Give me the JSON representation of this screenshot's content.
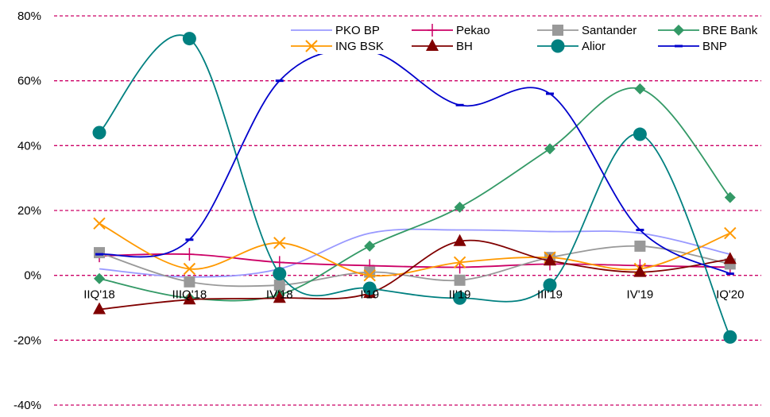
{
  "chart_data": {
    "type": "line",
    "title": "",
    "xlabel": "",
    "ylabel": "",
    "categories": [
      "IIQ'18",
      "IIIQ'18",
      "IV'18",
      "I'19",
      "II'19",
      "III'19",
      "IV'19",
      "IQ'20"
    ],
    "y_ticks": [
      "80%",
      "60%",
      "40%",
      "20%",
      "0%",
      "-20%",
      "-40%"
    ],
    "ylim": [
      -40,
      80
    ],
    "y_unit": "%",
    "grid": "horizontal dashed",
    "grid_color": "#cc0066",
    "legend_position": "top-right",
    "series": [
      {
        "name": "PKO BP",
        "color": "#9999ff",
        "marker": "none",
        "values": [
          2,
          -0.5,
          2,
          13,
          14,
          13.5,
          13,
          6.5
        ]
      },
      {
        "name": "Pekao",
        "color": "#cc0066",
        "marker": "plus",
        "values": [
          6,
          6.5,
          4,
          3,
          2.5,
          3.5,
          3,
          2.5
        ]
      },
      {
        "name": "Santander",
        "color": "#999999",
        "marker": "square",
        "values": [
          7,
          -2,
          -3,
          1,
          -1.5,
          5.5,
          9,
          3.5
        ]
      },
      {
        "name": "BRE Bank",
        "color": "#339966",
        "marker": "diamond",
        "values": [
          -1,
          -7,
          -6,
          9,
          21,
          39,
          57.5,
          24
        ]
      },
      {
        "name": "ING BSK",
        "color": "#ff9900",
        "marker": "x",
        "values": [
          16,
          2,
          10,
          0,
          4,
          5.5,
          2,
          13
        ]
      },
      {
        "name": "BH",
        "color": "#800000",
        "marker": "triangle",
        "values": [
          -10.5,
          -7.5,
          -7,
          -5.5,
          10.5,
          4.5,
          1,
          5
        ]
      },
      {
        "name": "Alior",
        "color": "#008080",
        "marker": "circle",
        "values": [
          44,
          73,
          0.5,
          -4,
          -7,
          -3,
          43.5,
          -19
        ]
      },
      {
        "name": "BNP",
        "color": "#0000cc",
        "marker": "dash",
        "values": [
          6.5,
          11,
          60,
          69,
          52.5,
          56,
          14,
          0.5
        ]
      }
    ]
  }
}
